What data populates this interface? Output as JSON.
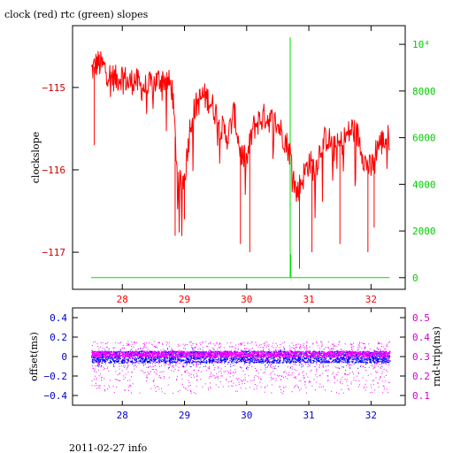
{
  "title": "clock (red) rtc (green) slopes",
  "footer": "2011-02-27 info",
  "colors": {
    "clock": "#ff0000",
    "rtc": "#00dd00",
    "offset": "#0000ff",
    "rndtrip": "#ff00ff",
    "axis": "#000000"
  },
  "chart_data": [
    {
      "type": "line",
      "title": "clock (red) rtc (green) slopes",
      "xlabel": "",
      "ylabel": "clockslope",
      "y2label": "",
      "xlim": [
        27.2,
        32.55
      ],
      "ylim": [
        -117.45,
        -114.25
      ],
      "y2lim": [
        -500,
        10800
      ],
      "x_ticks": [
        "28",
        "29",
        "30",
        "31",
        "32"
      ],
      "y_ticks": [
        "-115",
        "-116",
        "-117"
      ],
      "y2_ticks": [
        "0",
        "2000",
        "4000",
        "6000",
        "8000",
        "10⁴"
      ],
      "series": [
        {
          "name": "clock",
          "axis": "left",
          "x": [
            27.5,
            27.6,
            27.7,
            27.8,
            27.9,
            28.0,
            28.1,
            28.2,
            28.3,
            28.4,
            28.5,
            28.6,
            28.7,
            28.8,
            28.9,
            29.0,
            29.1,
            29.2,
            29.3,
            29.4,
            29.5,
            29.6,
            29.7,
            29.8,
            29.9,
            30.0,
            30.1,
            30.2,
            30.3,
            30.4,
            30.5,
            30.6,
            30.7,
            30.8,
            30.9,
            31.0,
            31.1,
            31.2,
            31.3,
            31.4,
            31.5,
            31.6,
            31.7,
            31.8,
            31.9,
            32.0,
            32.1,
            32.2,
            32.3
          ],
          "y": [
            -114.8,
            -114.7,
            -114.75,
            -114.85,
            -114.9,
            -114.85,
            -114.95,
            -114.9,
            -115.0,
            -115.0,
            -114.95,
            -114.9,
            -114.9,
            -115.0,
            -116.2,
            -116.1,
            -115.4,
            -115.2,
            -115.1,
            -115.15,
            -115.3,
            -115.5,
            -115.6,
            -115.3,
            -115.8,
            -115.9,
            -115.5,
            -115.4,
            -115.35,
            -115.4,
            -115.45,
            -115.6,
            -115.8,
            -116.3,
            -116.1,
            -115.9,
            -116.0,
            -115.7,
            -115.6,
            -115.75,
            -115.7,
            -115.6,
            -115.5,
            -115.6,
            -115.9,
            -116.0,
            -115.7,
            -115.65,
            -115.6
          ],
          "spikes": [
            {
              "x": 27.55,
              "y": -115.7
            },
            {
              "x": 28.85,
              "y": -116.8
            },
            {
              "x": 29.0,
              "y": -116.6
            },
            {
              "x": 29.9,
              "y": -116.9
            },
            {
              "x": 30.05,
              "y": -117.0
            },
            {
              "x": 30.85,
              "y": -117.2
            },
            {
              "x": 31.05,
              "y": -117.0
            },
            {
              "x": 31.5,
              "y": -116.9
            },
            {
              "x": 31.95,
              "y": -117.0
            },
            {
              "x": 32.05,
              "y": -116.7
            }
          ]
        },
        {
          "name": "rtc",
          "axis": "right",
          "x": [
            27.5,
            30.7,
            30.7,
            30.7,
            30.7,
            30.71,
            30.71,
            32.3
          ],
          "y": [
            0,
            0,
            10300,
            0,
            0,
            1000,
            0,
            0
          ]
        }
      ]
    },
    {
      "type": "scatter",
      "xlabel": "",
      "ylabel": "offset(ms)",
      "y2label": "rnd-trip(ms)",
      "xlim": [
        27.2,
        32.55
      ],
      "ylim": [
        -0.5,
        0.5
      ],
      "y2lim": [
        0.05,
        0.55
      ],
      "x_ticks": [
        "28",
        "29",
        "30",
        "31",
        "32"
      ],
      "y_ticks": [
        "0.4",
        "0.2",
        "0",
        "−0.2",
        "−0.4"
      ],
      "y2_ticks": [
        "0.5",
        "0.4",
        "0.3",
        "0.2",
        "0.1"
      ],
      "series": [
        {
          "name": "offset",
          "axis": "left",
          "x_range": [
            27.5,
            32.3
          ],
          "y_band": [
            -0.06,
            0.06
          ],
          "y_outliers": [
            -0.12,
            0.1
          ]
        },
        {
          "name": "rnd-trip",
          "axis": "right",
          "x_range": [
            27.5,
            32.3
          ],
          "y_band": [
            0.3,
            0.33
          ],
          "y_scatter": [
            0.11,
            0.38
          ]
        }
      ]
    }
  ]
}
